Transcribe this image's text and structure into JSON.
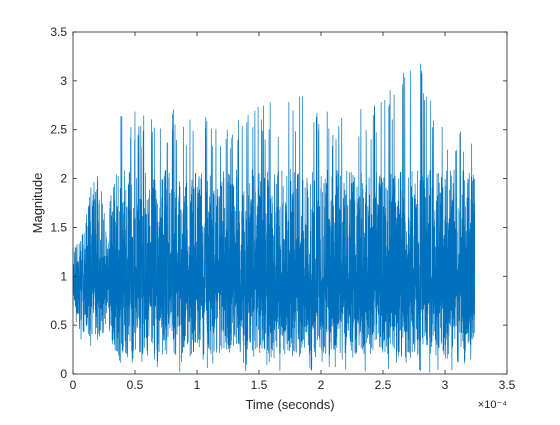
{
  "chart_data": {
    "type": "line",
    "title": "",
    "xlabel": "Time (seconds)",
    "ylabel": "Magnitude",
    "x_exponent_label": "×10⁻⁴",
    "xlim": [
      0,
      0.00035
    ],
    "ylim": [
      0,
      3.5
    ],
    "x_ticks": [
      0,
      0.5,
      1,
      1.5,
      2,
      2.5,
      3,
      3.5
    ],
    "x_tick_labels": [
      "0",
      "0.5",
      "1",
      "1.5",
      "2",
      "2.5",
      "3",
      "3.5"
    ],
    "y_ticks": [
      0,
      0.5,
      1,
      1.5,
      2,
      2.5,
      3,
      3.5
    ],
    "y_tick_labels": [
      "0",
      "0.5",
      "1",
      "1.5",
      "2",
      "2.5",
      "3",
      "3.5"
    ],
    "grid": false,
    "series": [
      {
        "color": "#0072BD",
        "x_range": [
          0,
          0.000324
        ],
        "envelope": [
          {
            "x": 0.0,
            "min": 0.6,
            "max": 1.3
          },
          {
            "x": 8e-06,
            "min": 0.3,
            "max": 1.45
          },
          {
            "x": 2e-05,
            "min": 0.2,
            "max": 2.35
          },
          {
            "x": 2.8e-05,
            "min": 0.6,
            "max": 1.3
          },
          {
            "x": 3.2e-05,
            "min": 0.05,
            "max": 2.7
          },
          {
            "x": 8e-05,
            "min": 0.02,
            "max": 2.72
          },
          {
            "x": 0.00012,
            "min": 0.03,
            "max": 2.65
          },
          {
            "x": 0.00019,
            "min": 0.02,
            "max": 2.93
          },
          {
            "x": 0.00022,
            "min": 0.03,
            "max": 2.6
          },
          {
            "x": 0.00028,
            "min": 0.01,
            "max": 3.22
          },
          {
            "x": 0.0003,
            "min": 0.02,
            "max": 2.7
          },
          {
            "x": 0.00032,
            "min": 0.05,
            "max": 2.55
          },
          {
            "x": 0.000324,
            "min": 0.1,
            "max": 2.05
          }
        ]
      }
    ]
  }
}
